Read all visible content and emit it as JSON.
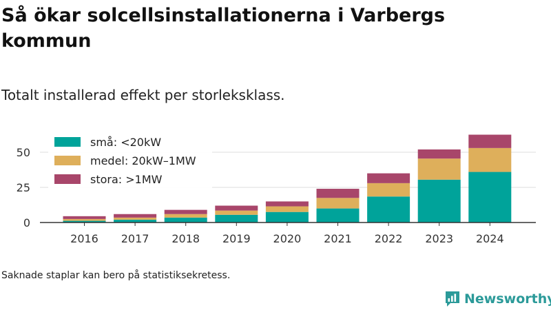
{
  "title": "Så ökar solcellsinstallationerna i Varbergs kommun",
  "subtitle": "Totalt installerad effekt per storleksklass.",
  "note": "Saknade staplar kan bero på statistiksekretess.",
  "brand": {
    "name": "Newsworthy",
    "icon": "newsworthy-logo-icon",
    "color": "#2b9a99"
  },
  "chart_data": {
    "type": "bar",
    "stacked": true,
    "categories": [
      "2016",
      "2017",
      "2018",
      "2019",
      "2020",
      "2021",
      "2022",
      "2023",
      "2024"
    ],
    "series": [
      {
        "name": "små: <20kW",
        "color": "#00a39a",
        "values": [
          1.2,
          2,
          3.5,
          5.5,
          7.5,
          10,
          18.5,
          30.5,
          36
        ]
      },
      {
        "name": "medel: 20kW–1MW",
        "color": "#deaf5b",
        "values": [
          1.3,
          1.5,
          2.5,
          3,
          4,
          7.5,
          9.5,
          15,
          17
        ]
      },
      {
        "name": "stora: >1MW",
        "color": "#a8466a",
        "values": [
          2,
          2.5,
          3,
          3.5,
          3.5,
          6.5,
          7,
          6.5,
          9.5
        ]
      }
    ],
    "yticks": [
      0,
      25,
      50
    ],
    "ylim": [
      0,
      62
    ],
    "grid": true,
    "legend": "top-left",
    "xlabel": "",
    "ylabel": ""
  }
}
